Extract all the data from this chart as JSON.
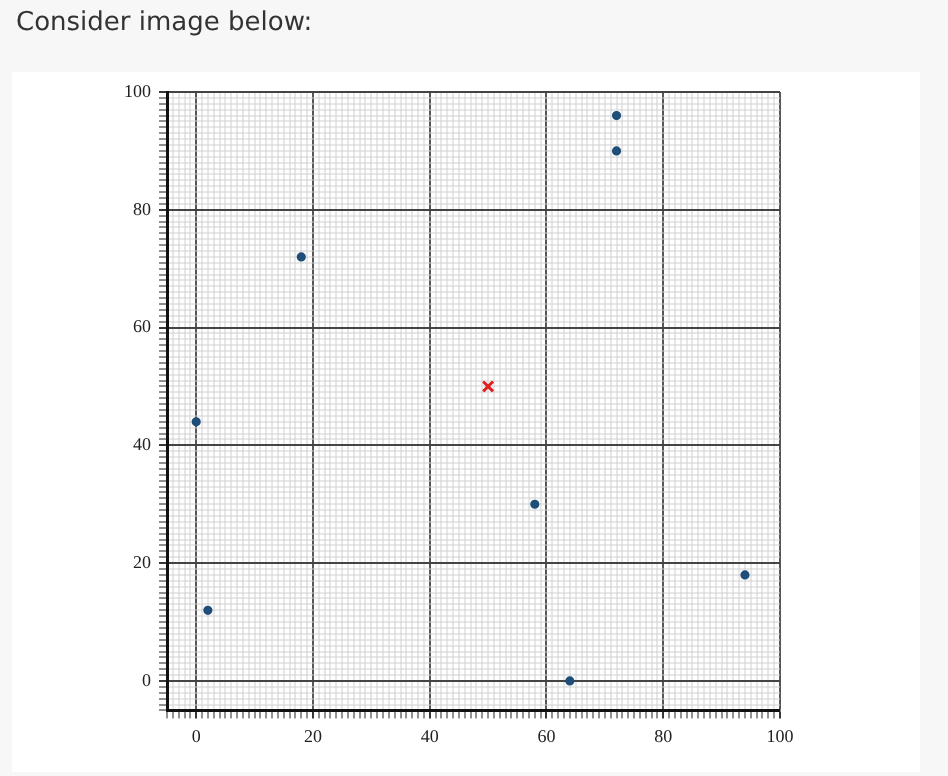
{
  "chart_data": {
    "type": "scatter",
    "title": "Consider image below:",
    "series": [
      {
        "color": "#1f4e79",
        "marker": "circle",
        "x": [
          0,
          2,
          18,
          58,
          64,
          72,
          72,
          94
        ],
        "values": [
          44,
          12,
          72,
          30,
          0,
          96,
          90,
          18
        ]
      },
      {
        "color": "#e02020",
        "marker": "cross",
        "x": [
          50
        ],
        "values": [
          50
        ]
      }
    ],
    "xlim": [
      -5,
      100
    ],
    "ylim": [
      -5,
      100
    ],
    "grid": true,
    "xticks": [
      {
        "value": -5,
        "label": null
      },
      {
        "value": -4,
        "label": null
      },
      {
        "value": -3,
        "label": null
      },
      {
        "value": -2,
        "label": null
      },
      {
        "value": -1,
        "label": null
      },
      0,
      {
        "value": 1,
        "label": null
      },
      {
        "value": 2,
        "label": null
      },
      {
        "value": 3,
        "label": null
      },
      {
        "value": 4,
        "label": null
      },
      {
        "value": 5,
        "label": null
      },
      {
        "value": 6,
        "label": null
      },
      {
        "value": 7,
        "label": null
      },
      {
        "value": 8,
        "label": null
      },
      {
        "value": 9,
        "label": null
      },
      {
        "value": 10,
        "label": null
      },
      {
        "value": 11,
        "label": null
      },
      {
        "value": 12,
        "label": null
      },
      {
        "value": 13,
        "label": null
      },
      {
        "value": 14,
        "label": null
      },
      {
        "value": 15,
        "label": null
      },
      {
        "value": 16,
        "label": null
      },
      {
        "value": 17,
        "label": null
      },
      {
        "value": 18,
        "label": null
      },
      {
        "value": 19,
        "label": null
      },
      20,
      {
        "value": 21,
        "label": null
      },
      {
        "value": 22,
        "label": null
      },
      {
        "value": 23,
        "label": null
      },
      {
        "value": 24,
        "label": null
      },
      {
        "value": 25,
        "label": null
      },
      {
        "value": 26,
        "label": null
      },
      {
        "value": 27,
        "label": null
      },
      {
        "value": 28,
        "label": null
      },
      {
        "value": 29,
        "label": null
      },
      {
        "value": 30,
        "label": null
      },
      {
        "value": 31,
        "label": null
      },
      {
        "value": 32,
        "label": null
      },
      {
        "value": 33,
        "label": null
      },
      {
        "value": 34,
        "label": null
      },
      {
        "value": 35,
        "label": null
      },
      {
        "value": 36,
        "label": null
      },
      {
        "value": 37,
        "label": null
      },
      {
        "value": 38,
        "label": null
      },
      {
        "value": 39,
        "label": null
      },
      40,
      {
        "value": 41,
        "label": null
      },
      {
        "value": 42,
        "label": null
      },
      {
        "value": 43,
        "label": null
      },
      {
        "value": 44,
        "label": null
      },
      {
        "value": 45,
        "label": null
      },
      {
        "value": 46,
        "label": null
      },
      {
        "value": 47,
        "label": null
      },
      {
        "value": 48,
        "label": null
      },
      {
        "value": 49,
        "label": null
      },
      {
        "value": 50,
        "label": null
      },
      {
        "value": 51,
        "label": null
      },
      {
        "value": 52,
        "label": null
      },
      {
        "value": 53,
        "label": null
      },
      {
        "value": 54,
        "label": null
      },
      {
        "value": 55,
        "label": null
      },
      {
        "value": 56,
        "label": null
      },
      {
        "value": 57,
        "label": null
      },
      {
        "value": 58,
        "label": null
      },
      {
        "value": 59,
        "label": null
      },
      60,
      {
        "value": 61,
        "label": null
      },
      {
        "value": 62,
        "label": null
      },
      {
        "value": 63,
        "label": null
      },
      {
        "value": 64,
        "label": null
      },
      {
        "value": 65,
        "label": null
      },
      {
        "value": 66,
        "label": null
      },
      {
        "value": 67,
        "label": null
      },
      {
        "value": 68,
        "label": null
      },
      {
        "value": 69,
        "label": null
      },
      {
        "value": 70,
        "label": null
      },
      {
        "value": 71,
        "label": null
      },
      {
        "value": 72,
        "label": null
      },
      {
        "value": 73,
        "label": null
      },
      {
        "value": 74,
        "label": null
      },
      {
        "value": 75,
        "label": null
      },
      {
        "value": 76,
        "label": null
      },
      {
        "value": 77,
        "label": null
      },
      {
        "value": 78,
        "label": null
      },
      {
        "value": 79,
        "label": null
      },
      80,
      {
        "value": 81,
        "label": null
      },
      {
        "value": 82,
        "label": null
      },
      {
        "value": 83,
        "label": null
      },
      {
        "value": 84,
        "label": null
      },
      {
        "value": 85,
        "label": null
      },
      {
        "value": 86,
        "label": null
      },
      {
        "value": 87,
        "label": null
      },
      {
        "value": 88,
        "label": null
      },
      {
        "value": 89,
        "label": null
      },
      {
        "value": 90,
        "label": null
      },
      {
        "value": 91,
        "label": null
      },
      {
        "value": 92,
        "label": null
      },
      {
        "value": 93,
        "label": null
      },
      {
        "value": 94,
        "label": null
      },
      {
        "value": 95,
        "label": null
      },
      {
        "value": 96,
        "label": null
      },
      {
        "value": 97,
        "label": null
      },
      {
        "value": 98,
        "label": null
      },
      {
        "value": 99,
        "label": null
      },
      100
    ],
    "yticks": [
      {
        "value": -5,
        "label": null
      },
      {
        "value": -4,
        "label": null
      },
      {
        "value": -3,
        "label": null
      },
      {
        "value": -2,
        "label": null
      },
      {
        "value": -1,
        "label": null
      },
      0,
      {
        "value": 1,
        "label": null
      },
      {
        "value": 2,
        "label": null
      },
      {
        "value": 3,
        "label": null
      },
      {
        "value": 4,
        "label": null
      },
      {
        "value": 5,
        "label": null
      },
      {
        "value": 6,
        "label": null
      },
      {
        "value": 7,
        "label": null
      },
      {
        "value": 8,
        "label": null
      },
      {
        "value": 9,
        "label": null
      },
      {
        "value": 10,
        "label": null
      },
      {
        "value": 11,
        "label": null
      },
      {
        "value": 12,
        "label": null
      },
      {
        "value": 13,
        "label": null
      },
      {
        "value": 14,
        "label": null
      },
      {
        "value": 15,
        "label": null
      },
      {
        "value": 16,
        "label": null
      },
      {
        "value": 17,
        "label": null
      },
      {
        "value": 18,
        "label": null
      },
      {
        "value": 19,
        "label": null
      },
      20,
      {
        "value": 21,
        "label": null
      },
      {
        "value": 22,
        "label": null
      },
      {
        "value": 23,
        "label": null
      },
      {
        "value": 24,
        "label": null
      },
      {
        "value": 25,
        "label": null
      },
      {
        "value": 26,
        "label": null
      },
      {
        "value": 27,
        "label": null
      },
      {
        "value": 28,
        "label": null
      },
      {
        "value": 29,
        "label": null
      },
      {
        "value": 30,
        "label": null
      },
      {
        "value": 31,
        "label": null
      },
      {
        "value": 32,
        "label": null
      },
      {
        "value": 33,
        "label": null
      },
      {
        "value": 34,
        "label": null
      },
      {
        "value": 35,
        "label": null
      },
      {
        "value": 36,
        "label": null
      },
      {
        "value": 37,
        "label": null
      },
      {
        "value": 38,
        "label": null
      },
      {
        "value": 39,
        "label": null
      },
      40,
      {
        "value": 41,
        "label": null
      },
      {
        "value": 42,
        "label": null
      },
      {
        "value": 43,
        "label": null
      },
      {
        "value": 44,
        "label": null
      },
      {
        "value": 45,
        "label": null
      },
      {
        "value": 46,
        "label": null
      },
      {
        "value": 47,
        "label": null
      },
      {
        "value": 48,
        "label": null
      },
      {
        "value": 49,
        "label": null
      },
      {
        "value": 50,
        "label": null
      },
      {
        "value": 51,
        "label": null
      },
      {
        "value": 52,
        "label": null
      },
      {
        "value": 53,
        "label": null
      },
      {
        "value": 54,
        "label": null
      },
      {
        "value": 55,
        "label": null
      },
      {
        "value": 56,
        "label": null
      },
      {
        "value": 57,
        "label": null
      },
      {
        "value": 58,
        "label": null
      },
      {
        "value": 59,
        "label": null
      },
      60,
      {
        "value": 61,
        "label": null
      },
      {
        "value": 62,
        "label": null
      },
      {
        "value": 63,
        "label": null
      },
      {
        "value": 64,
        "label": null
      },
      {
        "value": 65,
        "label": null
      },
      {
        "value": 66,
        "label": null
      },
      {
        "value": 67,
        "label": null
      },
      {
        "value": 68,
        "label": null
      },
      {
        "value": 69,
        "label": null
      },
      {
        "value": 70,
        "label": null
      },
      {
        "value": 71,
        "label": null
      },
      {
        "value": 72,
        "label": null
      },
      {
        "value": 73,
        "label": null
      },
      {
        "value": 74,
        "label": null
      },
      {
        "value": 75,
        "label": null
      },
      {
        "value": 76,
        "label": null
      },
      {
        "value": 77,
        "label": null
      },
      {
        "value": 78,
        "label": null
      },
      {
        "value": 79,
        "label": null
      },
      80,
      {
        "value": 81,
        "label": null
      },
      {
        "value": 82,
        "label": null
      },
      {
        "value": 83,
        "label": null
      },
      {
        "value": 84,
        "label": null
      },
      {
        "value": 85,
        "label": null
      },
      {
        "value": 86,
        "label": null
      },
      {
        "value": 87,
        "label": null
      },
      {
        "value": 88,
        "label": null
      },
      {
        "value": 89,
        "label": null
      },
      {
        "value": 90,
        "label": null
      },
      {
        "value": 91,
        "label": null
      },
      {
        "value": 92,
        "label": null
      },
      {
        "value": 93,
        "label": null
      },
      {
        "value": 94,
        "label": null
      },
      {
        "value": 95,
        "label": null
      },
      {
        "value": 96,
        "label": null
      },
      {
        "value": 97,
        "label": null
      },
      {
        "value": 98,
        "label": null
      },
      {
        "value": 99,
        "label": null
      },
      100
    ]
  }
}
